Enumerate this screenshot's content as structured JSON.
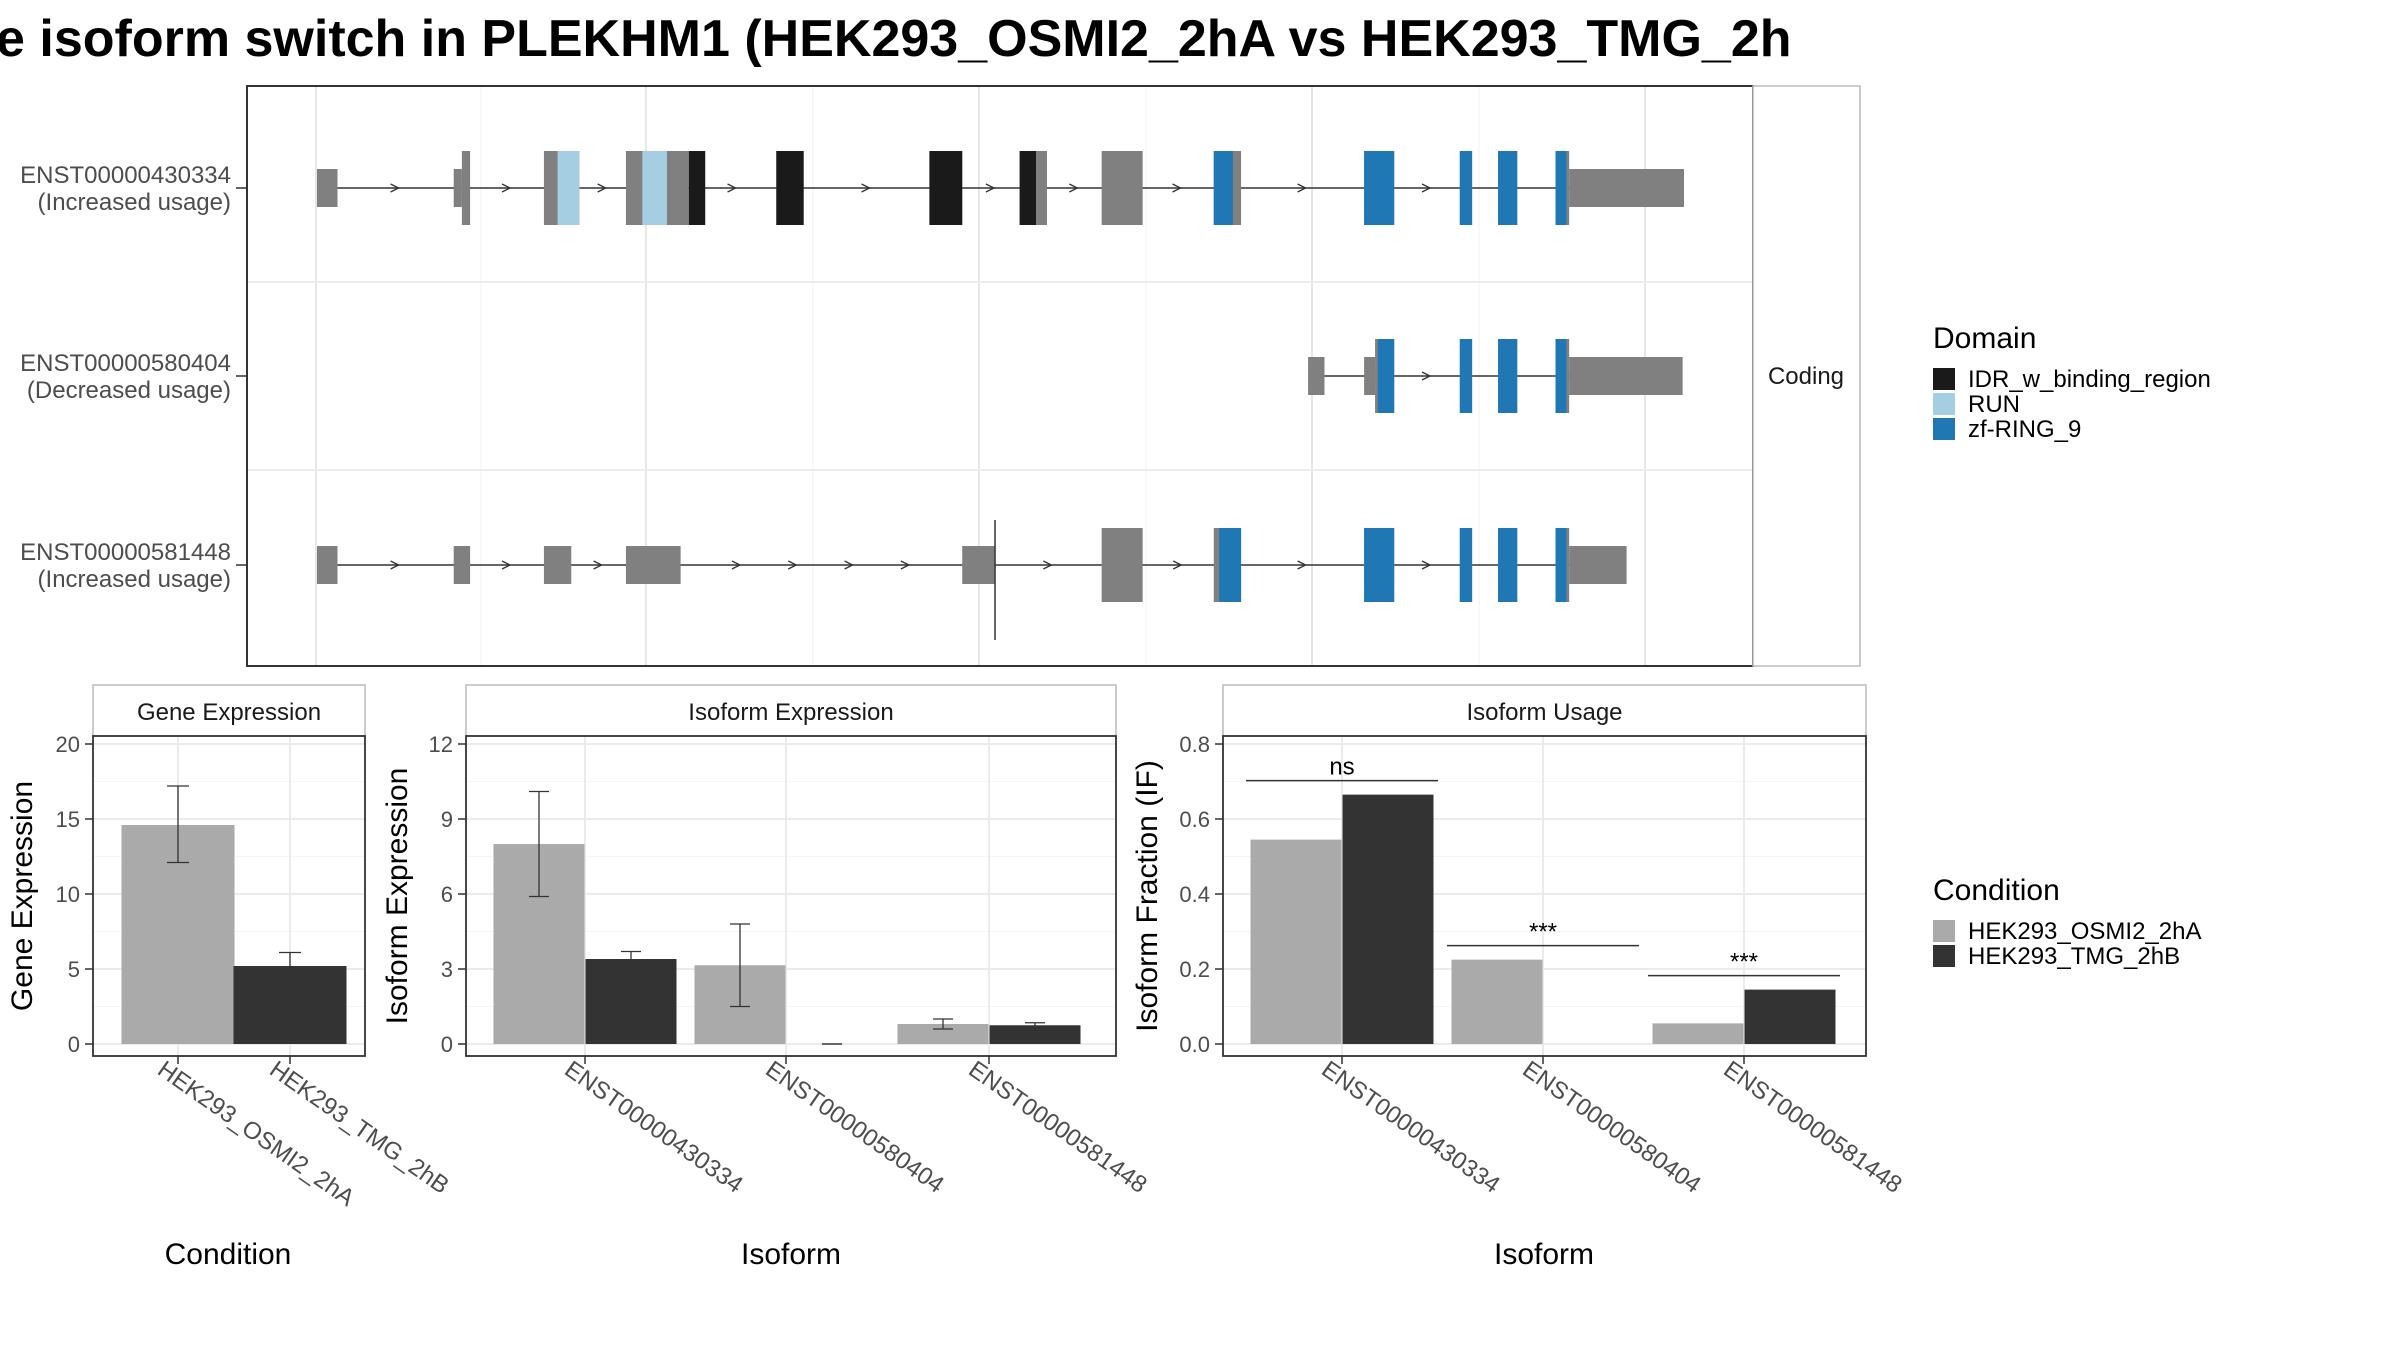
{
  "title": "e isoform switch in PLEKHM1 (HEK293_OSMI2_2hA vs HEK293_TMG_2h",
  "colors": {
    "exon": "#808080",
    "IDR_w_binding_region": "#1a1a1a",
    "RUN": "#a6cee3",
    "zf-RING_9": "#1f78b4",
    "HEK293_OSMI2_2hA": "#aaaaaa",
    "HEK293_TMG_2hB": "#333333"
  },
  "structure": {
    "strip_label": "Coding",
    "x_range": [
      0,
      100
    ],
    "transcripts": [
      {
        "label": "ENST00000430334",
        "usage": "(Increased usage)",
        "intron": [
          0.0,
          94.0
        ],
        "exons": [
          {
            "s": 0.0,
            "e": 1.5,
            "h": "utr"
          },
          {
            "s": 10.0,
            "e": 10.6,
            "h": "utr"
          },
          {
            "s": 10.6,
            "e": 11.2,
            "h": "cds"
          },
          {
            "s": 16.6,
            "e": 19.2,
            "h": "cds"
          },
          {
            "s": 22.6,
            "e": 27.2,
            "h": "cds"
          },
          {
            "s": 33.6,
            "e": 35.6,
            "h": "cds"
          },
          {
            "s": 44.8,
            "e": 47.2,
            "h": "cds"
          },
          {
            "s": 51.4,
            "e": 52.6,
            "h": "cds"
          },
          {
            "s": 52.6,
            "e": 53.4,
            "h": "cds"
          },
          {
            "s": 57.4,
            "e": 60.4,
            "h": "cds"
          },
          {
            "s": 59.6,
            "e": 60.3,
            "h": "cds"
          },
          {
            "s": 65.6,
            "e": 67.6,
            "h": "cds"
          },
          {
            "s": 76.6,
            "e": 78.8,
            "h": "cds"
          },
          {
            "s": 83.6,
            "e": 84.5,
            "h": "cds"
          },
          {
            "s": 86.4,
            "e": 87.8,
            "h": "cds"
          },
          {
            "s": 90.6,
            "e": 91.6,
            "h": "cds"
          },
          {
            "s": 91.6,
            "e": 100.0,
            "h": "utr"
          }
        ],
        "domains": [
          {
            "s": 17.6,
            "e": 19.2,
            "name": "RUN"
          },
          {
            "s": 23.8,
            "e": 25.6,
            "name": "RUN"
          },
          {
            "s": 27.2,
            "e": 28.4,
            "name": "IDR_w_binding_region"
          },
          {
            "s": 33.6,
            "e": 35.6,
            "name": "IDR_w_binding_region"
          },
          {
            "s": 44.8,
            "e": 47.2,
            "name": "IDR_w_binding_region"
          },
          {
            "s": 51.4,
            "e": 52.6,
            "name": "IDR_w_binding_region"
          },
          {
            "s": 65.6,
            "e": 67.0,
            "name": "zf-RING_9"
          },
          {
            "s": 76.6,
            "e": 78.8,
            "name": "zf-RING_9"
          },
          {
            "s": 83.6,
            "e": 84.5,
            "name": "zf-RING_9"
          },
          {
            "s": 86.4,
            "e": 87.8,
            "name": "zf-RING_9"
          },
          {
            "s": 90.6,
            "e": 91.4,
            "name": "zf-RING_9"
          }
        ]
      },
      {
        "label": "ENST00000580404",
        "usage": "(Decreased usage)",
        "intron": [
          72.5,
          94.0
        ],
        "exons": [
          {
            "s": 72.5,
            "e": 73.7,
            "h": "utr"
          },
          {
            "s": 76.6,
            "e": 77.4,
            "h": "utr"
          },
          {
            "s": 77.4,
            "e": 78.8,
            "h": "cds"
          },
          {
            "s": 83.6,
            "e": 84.5,
            "h": "cds"
          },
          {
            "s": 86.4,
            "e": 87.8,
            "h": "cds"
          },
          {
            "s": 90.6,
            "e": 91.6,
            "h": "cds"
          },
          {
            "s": 91.6,
            "e": 99.9,
            "h": "utr"
          }
        ],
        "domains": [
          {
            "s": 77.6,
            "e": 78.8,
            "name": "zf-RING_9"
          },
          {
            "s": 83.6,
            "e": 84.5,
            "name": "zf-RING_9"
          },
          {
            "s": 86.4,
            "e": 87.8,
            "name": "zf-RING_9"
          },
          {
            "s": 90.6,
            "e": 91.4,
            "name": "zf-RING_9"
          }
        ]
      },
      {
        "label": "ENST00000581448",
        "usage": "(Increased usage)",
        "intron": [
          0.0,
          94.0
        ],
        "exons": [
          {
            "s": 0.0,
            "e": 1.5,
            "h": "utr"
          },
          {
            "s": 10.0,
            "e": 11.2,
            "h": "utr"
          },
          {
            "s": 16.6,
            "e": 18.6,
            "h": "utr"
          },
          {
            "s": 22.6,
            "e": 26.6,
            "h": "utr"
          },
          {
            "s": 47.2,
            "e": 49.6,
            "h": "utr"
          },
          {
            "s": 57.4,
            "e": 60.4,
            "h": "cds"
          },
          {
            "s": 65.6,
            "e": 67.6,
            "h": "cds"
          },
          {
            "s": 76.6,
            "e": 78.8,
            "h": "cds"
          },
          {
            "s": 83.6,
            "e": 84.5,
            "h": "cds"
          },
          {
            "s": 86.4,
            "e": 87.8,
            "h": "cds"
          },
          {
            "s": 90.6,
            "e": 91.6,
            "h": "cds"
          },
          {
            "s": 91.6,
            "e": 95.8,
            "h": "utr"
          }
        ],
        "domains": [
          {
            "s": 66.0,
            "e": 67.6,
            "name": "zf-RING_9"
          },
          {
            "s": 76.6,
            "e": 78.8,
            "name": "zf-RING_9"
          },
          {
            "s": 83.6,
            "e": 84.5,
            "name": "zf-RING_9"
          },
          {
            "s": 86.4,
            "e": 87.8,
            "name": "zf-RING_9"
          },
          {
            "s": 90.6,
            "e": 91.4,
            "name": "zf-RING_9"
          }
        ],
        "marker_x": 49.6
      }
    ]
  },
  "legend_domain": {
    "title": "Domain",
    "items": [
      "IDR_w_binding_region",
      "RUN",
      "zf-RING_9"
    ]
  },
  "legend_condition": {
    "title": "Condition",
    "items": [
      "HEK293_OSMI2_2hA",
      "HEK293_TMG_2hB"
    ]
  },
  "chart_data": [
    {
      "type": "bar",
      "title": "Gene Expression",
      "xlabel": "Condition",
      "ylabel": "Gene Expression",
      "ylim": [
        0,
        20
      ],
      "yticks": [
        0,
        5,
        10,
        15,
        20
      ],
      "categories": [
        "HEK293_OSMI2_2hA",
        "HEK293_TMG_2hB"
      ],
      "values": [
        14.6,
        5.2
      ],
      "error_low": [
        12.1,
        4.4
      ],
      "error_high": [
        17.2,
        6.1
      ]
    },
    {
      "type": "bar",
      "title": "Isoform Expression",
      "xlabel": "Isoform",
      "ylabel": "Isoform Expression",
      "ylim": [
        0,
        12
      ],
      "yticks": [
        0,
        3,
        6,
        9,
        12
      ],
      "categories": [
        "ENST00000430334",
        "ENST00000580404",
        "ENST00000581448"
      ],
      "series": [
        {
          "name": "HEK293_OSMI2_2hA",
          "values": [
            8.0,
            3.15,
            0.8
          ],
          "error_low": [
            5.9,
            1.5,
            0.6
          ],
          "error_high": [
            10.1,
            4.8,
            1.0
          ]
        },
        {
          "name": "HEK293_TMG_2hB",
          "values": [
            3.4,
            0.0,
            0.75
          ],
          "error_low": [
            3.2,
            0.0,
            0.65
          ],
          "error_high": [
            3.7,
            0.0,
            0.85
          ]
        }
      ]
    },
    {
      "type": "bar",
      "title": "Isoform Usage",
      "xlabel": "Isoform",
      "ylabel": "Isoform Fraction (IF)",
      "ylim": [
        0,
        0.8
      ],
      "yticks": [
        "0.0",
        "0.2",
        "0.4",
        "0.6",
        "0.8"
      ],
      "categories": [
        "ENST00000430334",
        "ENST00000580404",
        "ENST00000581448"
      ],
      "series": [
        {
          "name": "HEK293_OSMI2_2hA",
          "values": [
            0.545,
            0.225,
            0.055
          ]
        },
        {
          "name": "HEK293_TMG_2hB",
          "values": [
            0.665,
            0.0,
            0.145
          ]
        }
      ],
      "significance": [
        "ns",
        "***",
        "***"
      ]
    }
  ]
}
